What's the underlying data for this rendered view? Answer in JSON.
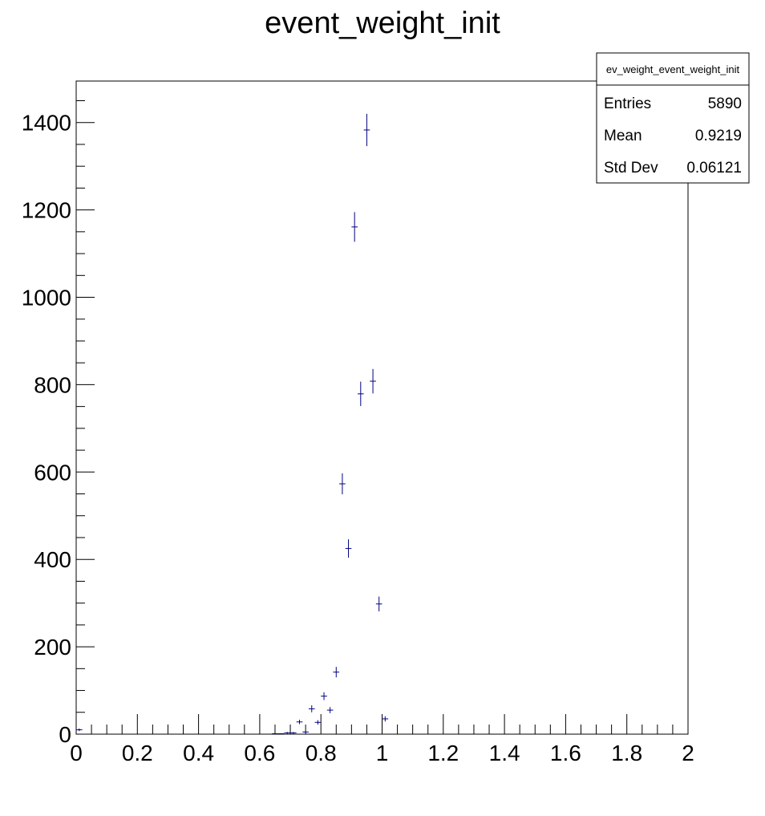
{
  "chart_data": {
    "type": "scatter",
    "title": "event_weight_init",
    "xlabel": "",
    "ylabel": "",
    "xlim": [
      0,
      2
    ],
    "ylim": [
      0,
      1495
    ],
    "x_ticks": [
      "0",
      "0.2",
      "0.4",
      "0.6",
      "0.8",
      "1",
      "1.2",
      "1.4",
      "1.6",
      "1.8",
      "2"
    ],
    "y_ticks": [
      "0",
      "200",
      "400",
      "600",
      "800",
      "1000",
      "1200",
      "1400"
    ],
    "grid": false,
    "marker_color": "#000080",
    "points": [
      {
        "x": 0.01,
        "y": 10,
        "err": 3
      },
      {
        "x": 0.65,
        "y": 1,
        "err": 1
      },
      {
        "x": 0.67,
        "y": 1,
        "err": 1
      },
      {
        "x": 0.69,
        "y": 3,
        "err": 2
      },
      {
        "x": 0.71,
        "y": 3,
        "err": 2
      },
      {
        "x": 0.73,
        "y": 28,
        "err": 5
      },
      {
        "x": 0.75,
        "y": 5,
        "err": 2
      },
      {
        "x": 0.77,
        "y": 58,
        "err": 8
      },
      {
        "x": 0.79,
        "y": 27,
        "err": 5
      },
      {
        "x": 0.81,
        "y": 87,
        "err": 9
      },
      {
        "x": 0.83,
        "y": 55,
        "err": 7
      },
      {
        "x": 0.85,
        "y": 142,
        "err": 12
      },
      {
        "x": 0.87,
        "y": 573,
        "err": 24
      },
      {
        "x": 0.89,
        "y": 425,
        "err": 21
      },
      {
        "x": 0.91,
        "y": 1161,
        "err": 34
      },
      {
        "x": 0.93,
        "y": 779,
        "err": 28
      },
      {
        "x": 0.95,
        "y": 1383,
        "err": 37
      },
      {
        "x": 0.97,
        "y": 808,
        "err": 28
      },
      {
        "x": 0.99,
        "y": 298,
        "err": 17
      },
      {
        "x": 1.01,
        "y": 35,
        "err": 6
      }
    ],
    "legend": {
      "placement": "top-right",
      "title": "ev_weight_event_weight_init",
      "rows": [
        {
          "label": "Entries",
          "value": "5890"
        },
        {
          "label": "Mean",
          "value": "0.9219"
        },
        {
          "label": "Std Dev",
          "value": "0.06121"
        }
      ]
    }
  }
}
